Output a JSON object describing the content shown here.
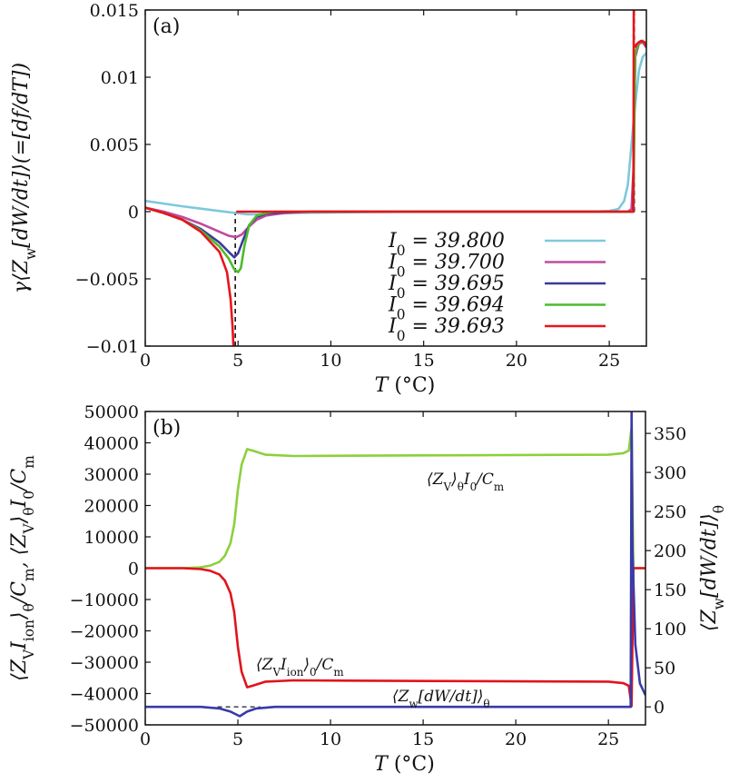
{
  "chart_data": [
    {
      "type": "line",
      "panel_label": "(a)",
      "xlabel": "T (°C)",
      "ylabel": "γ⟨Z_{w}[dW/dt]⟩(=[df/dT])",
      "xlim": [
        0,
        27
      ],
      "ylim": [
        -0.01,
        0.015
      ],
      "xticks": [
        0,
        5,
        10,
        15,
        20,
        25
      ],
      "yticks": [
        0.015,
        0.01,
        0.005,
        0,
        -0.005,
        -0.01
      ],
      "ytick_labels": [
        "0.015",
        "0.01",
        "0.005",
        "0",
        "−0.005",
        "−0.01"
      ],
      "grid": false,
      "legend_position": "lower-right",
      "dashed_verticals": [
        {
          "x": 4.85,
          "y": [
            -0.01,
            0
          ]
        },
        {
          "x": 26.35,
          "y": [
            0,
            0.015
          ]
        }
      ],
      "series": [
        {
          "name": "I_{0} = 39.800",
          "color": "#7ec8dc",
          "points": [
            [
              0,
              0.0008
            ],
            [
              1,
              0.0006
            ],
            [
              2,
              0.0004
            ],
            [
              3,
              0.00022
            ],
            [
              4,
              5e-05
            ],
            [
              4.9,
              -0.0001
            ],
            [
              5.5,
              -0.0002
            ],
            [
              6,
              -0.0002
            ],
            [
              8,
              -0.0001
            ],
            [
              12,
              -3e-05
            ],
            [
              16,
              0
            ],
            [
              24,
              0
            ],
            [
              25,
              5e-05
            ],
            [
              25.5,
              0.0002
            ],
            [
              25.8,
              0.0008
            ],
            [
              26,
              0.002
            ],
            [
              26.2,
              0.005
            ],
            [
              26.4,
              0.008
            ],
            [
              26.6,
              0.0105
            ],
            [
              26.8,
              0.0115
            ],
            [
              27,
              0.0118
            ]
          ]
        },
        {
          "name": "I_{0} = 39.700",
          "color": "#c04aa0",
          "points": [
            [
              0,
              0.0003
            ],
            [
              1,
              0
            ],
            [
              2,
              -0.0004
            ],
            [
              3,
              -0.0009
            ],
            [
              4,
              -0.0015
            ],
            [
              4.5,
              -0.0018
            ],
            [
              4.9,
              -0.0019
            ],
            [
              5.2,
              -0.0017
            ],
            [
              5.6,
              -0.0011
            ],
            [
              6,
              -0.0006
            ],
            [
              6.5,
              -0.0003
            ],
            [
              7.5,
              -0.0001
            ],
            [
              9,
              0
            ],
            [
              26,
              0
            ],
            [
              26.2,
              0.0002
            ],
            [
              26.3,
              0.003
            ],
            [
              26.35,
              0.008
            ],
            [
              26.4,
              0.0115
            ],
            [
              26.6,
              0.0125
            ],
            [
              26.8,
              0.0126
            ],
            [
              27,
              0.0122
            ]
          ]
        },
        {
          "name": "I_{0} = 39.695",
          "color": "#3a3a9a",
          "points": [
            [
              0,
              0.0003
            ],
            [
              1,
              -0.0001
            ],
            [
              2,
              -0.0006
            ],
            [
              3,
              -0.0013
            ],
            [
              4,
              -0.0023
            ],
            [
              4.5,
              -0.003
            ],
            [
              4.8,
              -0.0034
            ],
            [
              5,
              -0.0031
            ],
            [
              5.3,
              -0.002
            ],
            [
              5.6,
              -0.001
            ],
            [
              6,
              -0.0004
            ],
            [
              6.5,
              -0.00015
            ],
            [
              7.5,
              -5e-05
            ],
            [
              9,
              0
            ],
            [
              26.28,
              0
            ],
            [
              26.33,
              0.006
            ],
            [
              26.4,
              0.0118
            ],
            [
              26.6,
              0.0126
            ],
            [
              26.8,
              0.0127
            ],
            [
              27,
              0.0123
            ]
          ]
        },
        {
          "name": "I_{0} = 39.694",
          "color": "#4cbb2c",
          "points": [
            [
              0,
              0.0003
            ],
            [
              1,
              -0.0001
            ],
            [
              2,
              -0.0006
            ],
            [
              3,
              -0.0014
            ],
            [
              4,
              -0.0026
            ],
            [
              4.5,
              -0.0035
            ],
            [
              4.8,
              -0.0043
            ],
            [
              5,
              -0.0045
            ],
            [
              5.15,
              -0.0042
            ],
            [
              5.35,
              -0.0025
            ],
            [
              5.6,
              -0.001
            ],
            [
              6,
              -0.0003
            ],
            [
              6.5,
              -0.0001
            ],
            [
              7,
              0
            ],
            [
              26.3,
              0
            ],
            [
              26.35,
              0.006
            ],
            [
              26.4,
              0.0118
            ],
            [
              26.6,
              0.0126
            ],
            [
              26.8,
              0.0127
            ],
            [
              27,
              0.0123
            ]
          ]
        },
        {
          "name": "I_{0} = 39.693",
          "color": "#e8141c",
          "points": [
            [
              0,
              0.0003
            ],
            [
              1,
              -0.0001
            ],
            [
              2,
              -0.0006
            ],
            [
              3,
              -0.0015
            ],
            [
              4,
              -0.003
            ],
            [
              4.4,
              -0.0045
            ],
            [
              4.6,
              -0.0065
            ],
            [
              4.7,
              -0.0085
            ],
            [
              4.75,
              -0.01
            ],
            null,
            [
              4.9,
              0
            ],
            [
              26.3,
              0
            ],
            [
              26.32,
              0.015
            ],
            null,
            [
              26.38,
              0.0122
            ],
            [
              26.5,
              0.0125
            ],
            [
              26.7,
              0.0127
            ],
            [
              26.9,
              0.0126
            ],
            [
              27,
              0.0123
            ]
          ]
        }
      ]
    },
    {
      "type": "line",
      "panel_label": "(b)",
      "xlabel": "T (°C)",
      "ylabel": "⟨Z_{V}I_{ion}⟩_{θ}/C_{m}, ⟨Z_{V}⟩_{θ}I_{0}/C_{m}",
      "ylabel_right": "⟨Z_{w}[dW/dt]⟩_{θ}",
      "xlim": [
        0,
        27
      ],
      "ylim": [
        -50000,
        50000
      ],
      "ylim_right": [
        -23,
        378
      ],
      "xticks": [
        0,
        5,
        10,
        15,
        20,
        25
      ],
      "yticks": [
        50000,
        40000,
        30000,
        20000,
        10000,
        0,
        -10000,
        -20000,
        -30000,
        -40000,
        -50000
      ],
      "ytick_labels": [
        "50000",
        "40000",
        "30000",
        "20000",
        "10000",
        "0",
        "−10000",
        "−20000",
        "−30000",
        "−40000",
        "−50000"
      ],
      "yticks_right": [
        0,
        50,
        100,
        150,
        200,
        250,
        300,
        350
      ],
      "grid": false,
      "dashed_hline_right": {
        "y": 0,
        "x": [
          3.9,
          6.2
        ]
      },
      "series": [
        {
          "annotation": "⟨Z_{V}⟩_{θ}I_{0}/C_{m}",
          "axis": "left",
          "color": "#8cd03c",
          "points": [
            [
              0,
              0
            ],
            [
              2,
              0
            ],
            [
              3,
              300
            ],
            [
              3.5,
              800
            ],
            [
              4,
              2000
            ],
            [
              4.3,
              4000
            ],
            [
              4.6,
              8000
            ],
            [
              4.8,
              14000
            ],
            [
              5,
              25000
            ],
            [
              5.2,
              33000
            ],
            [
              5.5,
              38000
            ],
            [
              5.8,
              37500
            ],
            [
              6.5,
              36200
            ],
            [
              8,
              35800
            ],
            [
              15,
              36000
            ],
            [
              25,
              36200
            ],
            [
              25.8,
              36700
            ],
            [
              26.1,
              37500
            ],
            [
              26.25,
              45000
            ],
            [
              26.35,
              0
            ],
            [
              27,
              0
            ]
          ]
        },
        {
          "annotation": "⟨Z_{V}I_{ion}⟩_{0}/C_{m}",
          "axis": "left",
          "color": "#e0141c",
          "points": [
            [
              0,
              0
            ],
            [
              2,
              0
            ],
            [
              3,
              -300
            ],
            [
              3.5,
              -800
            ],
            [
              4,
              -2000
            ],
            [
              4.3,
              -4000
            ],
            [
              4.6,
              -8000
            ],
            [
              4.8,
              -14000
            ],
            [
              5,
              -25000
            ],
            [
              5.2,
              -33000
            ],
            [
              5.5,
              -38000
            ],
            [
              5.8,
              -37500
            ],
            [
              6.5,
              -36200
            ],
            [
              8,
              -35800
            ],
            [
              15,
              -36000
            ],
            [
              25,
              -36200
            ],
            [
              25.8,
              -36700
            ],
            [
              26.1,
              -37500
            ],
            [
              26.25,
              -44000
            ],
            [
              26.35,
              0
            ],
            [
              27,
              0
            ]
          ]
        },
        {
          "annotation": "⟨Z_{w}[dW/dt]⟩_{θ}",
          "axis": "right",
          "color": "#3a3aa8",
          "points": [
            [
              0,
              0
            ],
            [
              3,
              0
            ],
            [
              4,
              -2
            ],
            [
              4.6,
              -6
            ],
            [
              5.1,
              -12
            ],
            [
              5.5,
              -6
            ],
            [
              6,
              -2
            ],
            [
              7,
              0
            ],
            [
              26,
              0
            ],
            [
              26.2,
              0
            ],
            [
              26.25,
              380
            ],
            [
              26.3,
              200
            ],
            [
              26.45,
              80
            ],
            [
              26.7,
              30
            ],
            [
              27,
              15
            ]
          ]
        }
      ]
    }
  ]
}
